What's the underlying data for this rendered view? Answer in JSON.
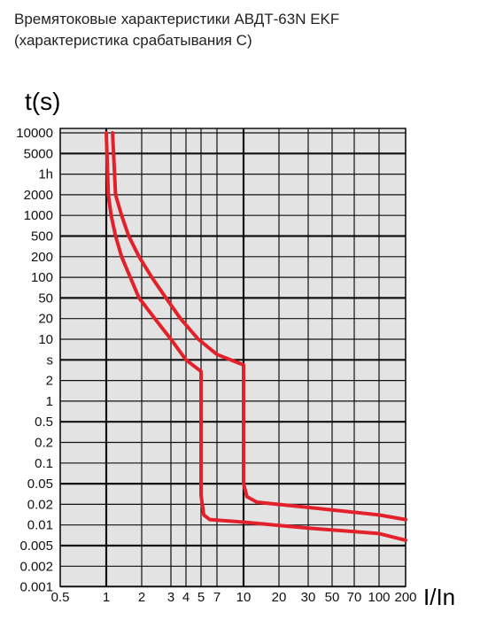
{
  "title_line1": "Времятоковые характеристики АВДТ-63N EKF",
  "title_line2": "(характеристика срабатывания С)",
  "chart_data": {
    "type": "line",
    "ylabel": "t(s)",
    "xlabel": "I/In",
    "x_ticks": [
      "0.5",
      "1",
      "2",
      "3",
      "4",
      "5",
      "7",
      "10",
      "20",
      "30",
      "50",
      "70",
      "100",
      "200"
    ],
    "y_ticks": [
      "10000",
      "5000",
      "1h",
      "2000",
      "1000",
      "500",
      "200",
      "100",
      "50",
      "20",
      "10",
      "s",
      "2",
      "1",
      "0.5",
      "0.2",
      "0.1",
      "0.05",
      "0.02",
      "0.01",
      "0.005",
      "0.002",
      "0.001"
    ],
    "grid": true,
    "curve_color": "#e3212b",
    "series": [
      {
        "points": [
          [
            1.0,
            10000
          ],
          [
            1.04,
            2000
          ],
          [
            1.1,
            1000
          ],
          [
            1.2,
            500
          ],
          [
            1.35,
            200
          ],
          [
            1.6,
            100
          ],
          [
            1.9,
            50
          ],
          [
            2.4,
            20
          ],
          [
            3.0,
            10
          ],
          [
            4.0,
            5
          ],
          [
            5.0,
            3
          ],
          [
            5.0,
            0.03
          ],
          [
            5.3,
            0.014
          ],
          [
            6.0,
            0.012
          ],
          [
            10,
            0.011
          ],
          [
            30,
            0.009
          ],
          [
            100,
            0.0075
          ],
          [
            200,
            0.006
          ]
        ]
      },
      {
        "points": [
          [
            1.13,
            10000
          ],
          [
            1.2,
            2000
          ],
          [
            1.35,
            1000
          ],
          [
            1.55,
            500
          ],
          [
            1.9,
            200
          ],
          [
            2.3,
            100
          ],
          [
            2.8,
            50
          ],
          [
            3.6,
            20
          ],
          [
            4.8,
            10
          ],
          [
            7.0,
            6
          ],
          [
            10,
            4
          ],
          [
            10,
            0.05
          ],
          [
            10.7,
            0.028
          ],
          [
            13,
            0.022
          ],
          [
            30,
            0.018
          ],
          [
            100,
            0.014
          ],
          [
            200,
            0.012
          ]
        ]
      }
    ]
  }
}
